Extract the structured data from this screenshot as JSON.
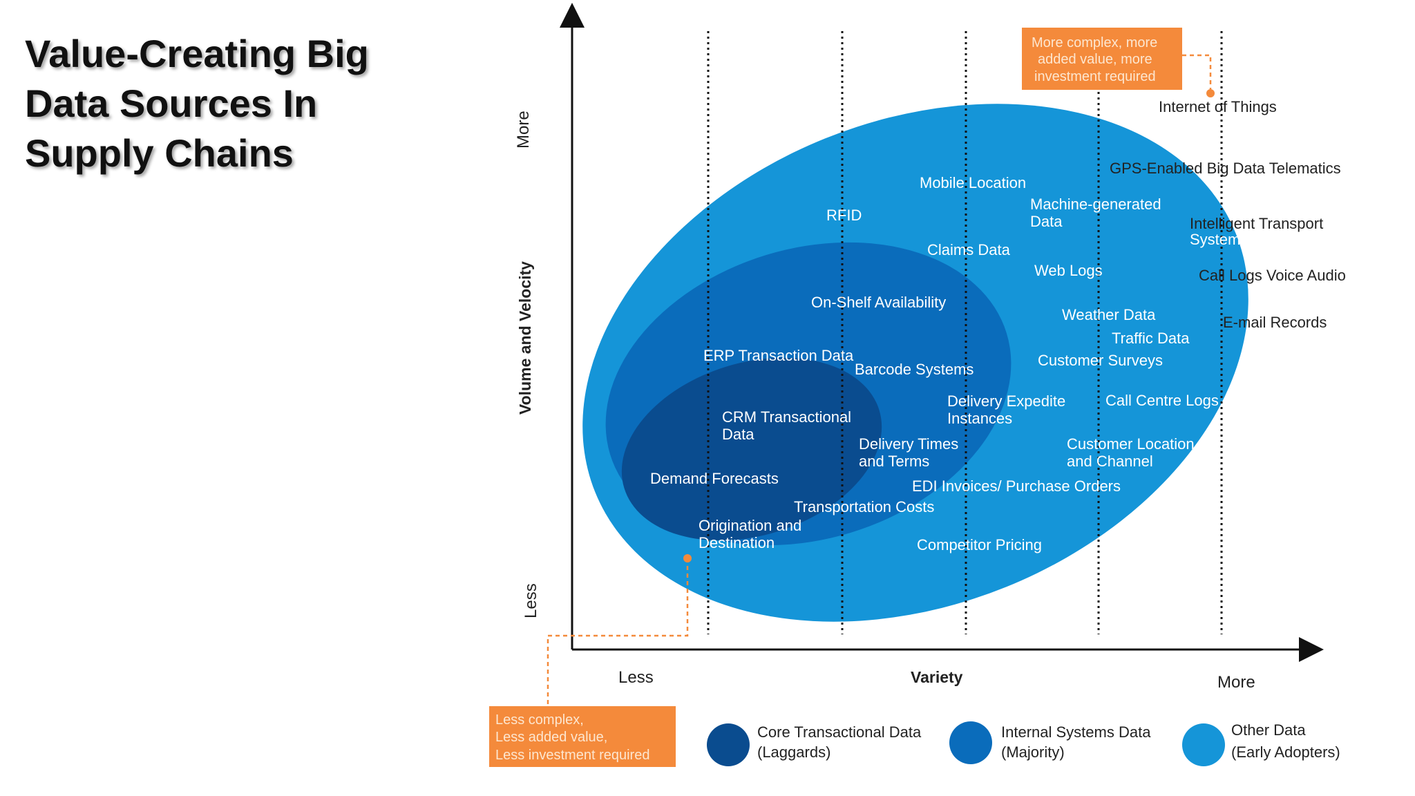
{
  "title_lines": [
    "Value-Creating Big",
    "Data Sources In",
    "Supply Chains"
  ],
  "axes": {
    "y_title": "Volume and Velocity",
    "y_more": "More",
    "y_less": "Less",
    "x_title": "Variety",
    "x_less": "Less",
    "x_more": "More"
  },
  "colors": {
    "core": "#0a4c8f",
    "internal": "#0a6cbb",
    "other": "#1595d8",
    "accent": "#f48a3b"
  },
  "callouts": {
    "top_lines": [
      "More complex, more",
      "added value, more",
      "investment required"
    ],
    "bottom_lines": [
      "Less complex,",
      "Less added value,",
      "Less investment required"
    ]
  },
  "sources": {
    "core": {
      "crm_1": "CRM Transactional",
      "crm_2": "Data",
      "demand": "Demand Forecasts",
      "origin_1": "Origination and",
      "origin_2": "Destination"
    },
    "internal": {
      "on_shelf": "On-Shelf Availability",
      "erp": "ERP Transaction Data",
      "barcode": "Barcode Systems",
      "delivery_times_1": "Delivery Times",
      "delivery_times_2": "and Terms",
      "transport_costs": "Transportation Costs"
    },
    "other": {
      "rfid": "RFID",
      "mobile": "Mobile Location",
      "claims": "Claims Data",
      "machine_1": "Machine-generated",
      "machine_2": "Data",
      "web_logs": "Web Logs",
      "weather": "Weather Data",
      "traffic": "Traffic Data",
      "surveys": "Customer Surveys",
      "expedite_1": "Delivery Expedite",
      "expedite_2": "Instances",
      "call_centre": "Call Centre Logs",
      "cust_loc_1": "Customer Location",
      "cust_loc_2": "and Channel",
      "edi": "EDI Invoices/ Purchase Orders",
      "competitor": "Competitor Pricing",
      "gps": "GPS-Enabled Big Data Telematics",
      "its_1": "Intelligent Transport",
      "its_2": "Systems",
      "call_logs": "Call Logs Voice Audio",
      "email": "E-mail Records",
      "iot": "Internet of Things"
    }
  },
  "legend": [
    {
      "line1": "Core Transactional Data",
      "line2": "(Laggards)",
      "color": "#0a4c8f"
    },
    {
      "line1": "Internal Systems Data",
      "line2": "(Majority)",
      "color": "#0a6cbb"
    },
    {
      "line1": "Other Data",
      "line2": "(Early Adopters)",
      "color": "#1595d8"
    }
  ]
}
